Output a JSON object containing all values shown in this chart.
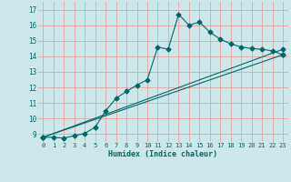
{
  "xlabel": "Humidex (Indice chaleur)",
  "background_color": "#cce8e8",
  "grid_color": "#e8a0a0",
  "line_color": "#006868",
  "xlim": [
    -0.5,
    23.5
  ],
  "ylim": [
    8.5,
    17.5
  ],
  "xticks": [
    0,
    1,
    2,
    3,
    4,
    5,
    6,
    7,
    8,
    9,
    10,
    11,
    12,
    13,
    14,
    15,
    16,
    17,
    18,
    19,
    20,
    21,
    22,
    23
  ],
  "yticks": [
    9,
    10,
    11,
    12,
    13,
    14,
    15,
    16,
    17
  ],
  "line1_x": [
    0,
    1,
    2,
    3,
    4,
    5,
    6,
    7,
    8,
    9,
    10,
    11,
    12,
    13,
    14,
    15,
    16,
    17,
    18,
    19,
    20,
    21,
    22,
    23
  ],
  "line1_y": [
    8.8,
    8.8,
    8.75,
    8.9,
    9.05,
    9.45,
    10.5,
    11.3,
    11.75,
    12.15,
    12.5,
    14.6,
    14.45,
    16.7,
    16.0,
    16.2,
    15.55,
    15.1,
    14.8,
    14.6,
    14.5,
    14.45,
    14.35,
    14.1
  ],
  "line2_x": [
    0,
    23
  ],
  "line2_y": [
    8.8,
    14.1
  ],
  "line3_x": [
    0,
    23
  ],
  "line3_y": [
    8.8,
    14.45
  ],
  "marker_size": 2.5
}
